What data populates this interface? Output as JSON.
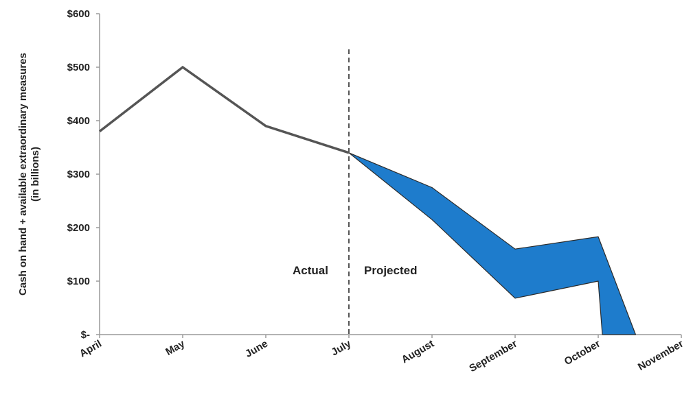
{
  "chart_data": {
    "type": "line",
    "ylabel_line1": "Cash on hand + available extraordinary measures",
    "ylabel_line2": "(in billions)",
    "categories": [
      "April",
      "May",
      "June",
      "July",
      "August",
      "September",
      "October",
      "November"
    ],
    "ylim": [
      0,
      600
    ],
    "y_ticks": [
      0,
      100,
      200,
      300,
      400,
      500,
      600
    ],
    "y_tick_labels": [
      "$-",
      "$100",
      "$200",
      "$300",
      "$400",
      "$500",
      "$600"
    ],
    "actual": {
      "x": [
        "April",
        "May",
        "June",
        "July"
      ],
      "values": [
        380,
        500,
        390,
        340
      ]
    },
    "projected_band": {
      "upper": [
        {
          "x": 3,
          "y": 340
        },
        {
          "x": 4,
          "y": 275
        },
        {
          "x": 5,
          "y": 160
        },
        {
          "x": 6,
          "y": 183
        },
        {
          "x": 6.45,
          "y": 0
        }
      ],
      "lower": [
        {
          "x": 3,
          "y": 340
        },
        {
          "x": 4,
          "y": 215
        },
        {
          "x": 5,
          "y": 68
        },
        {
          "x": 6,
          "y": 100
        },
        {
          "x": 6.05,
          "y": 0
        }
      ]
    },
    "divider_at": "July",
    "annotations": {
      "actual": "Actual",
      "projected": "Projected"
    },
    "colors": {
      "line": "#555555",
      "band": "#1e7ccc",
      "band_edge": "#2b2b2b",
      "divider": "#555555"
    },
    "grid": false
  }
}
